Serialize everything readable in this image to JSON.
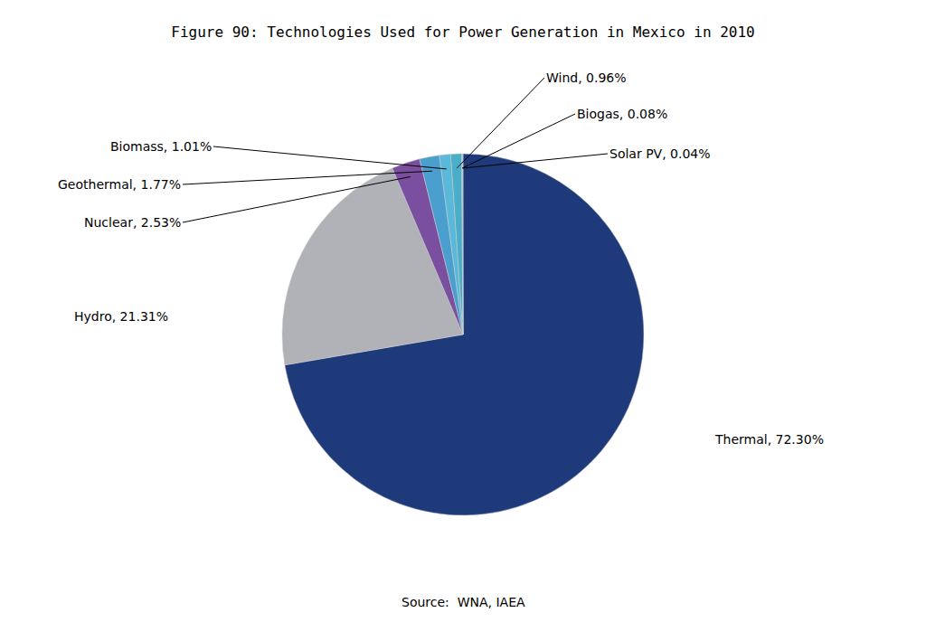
{
  "chart_data": {
    "type": "pie",
    "title": "Figure 90: Technologies Used for Power Generation in Mexico in 2010",
    "categories": [
      "Thermal",
      "Hydro",
      "Nuclear",
      "Geothermal",
      "Biomass",
      "Wind",
      "Biogas",
      "Solar PV"
    ],
    "values": [
      72.3,
      21.31,
      2.53,
      1.77,
      1.01,
      0.96,
      0.08,
      0.04
    ],
    "colors": [
      "#1e3a7a",
      "#b0b2b8",
      "#7b4fa0",
      "#4a9fcf",
      "#5ab8d8",
      "#4aaec8",
      "#6acce0",
      "#5ac4dc"
    ],
    "data_labels": true,
    "value_labels": [
      "Thermal, 72.30%",
      "Hydro, 21.31%",
      "Nuclear, 2.53%",
      "Geothermal, 1.77%",
      "Biomass, 1.01%",
      "Wind, 0.96%",
      "Biogas, 0.08%",
      "Solar PV, 0.04%"
    ],
    "annotations": [
      "Source:  WNA, IAEA"
    ]
  }
}
